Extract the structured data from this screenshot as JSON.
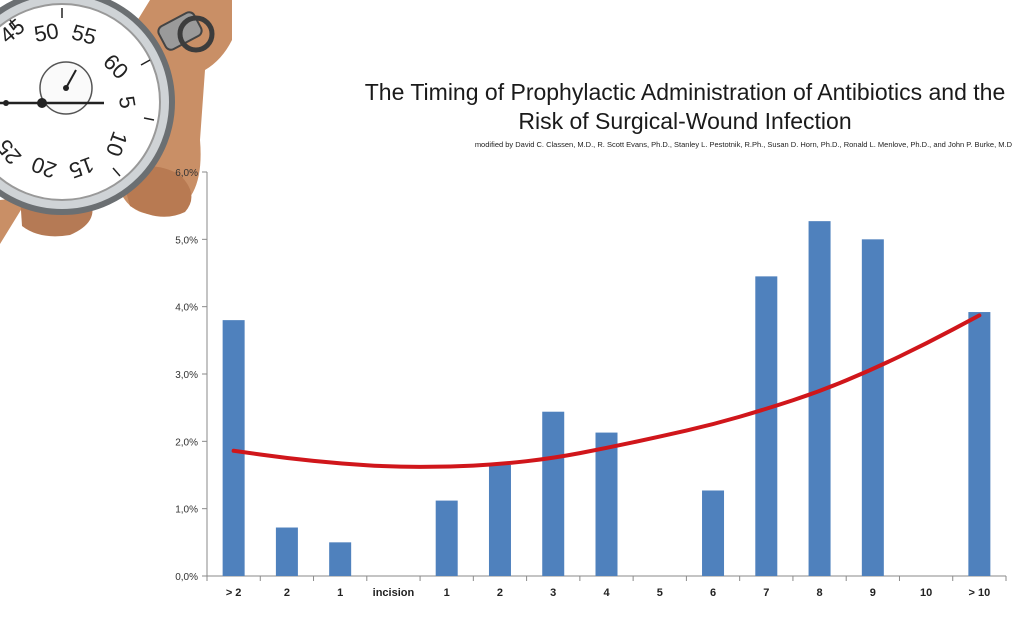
{
  "figure": {
    "title_line1": "The Timing of Prophylactic Administration of Antibiotics and the",
    "title_line2": "Risk of Surgical-Wound Infection",
    "subtitle": "modified by David C. Classen, M.D., R. Scott Evans, Ph.D., Stanley L. Pestotnik, R.Ph., Susan D. Horn, Ph.D., Ronald L. Menlove, Ph.D., and John P. Burke, M.D"
  },
  "stopwatch": {
    "dial_numbers": [
      "50",
      "55",
      "60",
      "5",
      "10",
      "15",
      "20",
      "25",
      "45"
    ]
  },
  "chart_data": {
    "type": "bar",
    "title": "The Timing of Prophylactic Administration of Antibiotics and the Risk of Surgical-Wound Infection",
    "categories": [
      "> 2",
      "2",
      "1",
      "incision",
      "1",
      "2",
      "3",
      "4",
      "5",
      "6",
      "7",
      "8",
      "9",
      "10",
      "> 10"
    ],
    "values": [
      3.8,
      0.72,
      0.5,
      0,
      1.12,
      1.65,
      2.44,
      2.13,
      0,
      1.27,
      4.45,
      5.27,
      5.0,
      0,
      3.92
    ],
    "trendline": {
      "type": "polynomial",
      "values": [
        1.86,
        1.75,
        1.67,
        1.62,
        1.62,
        1.66,
        1.75,
        1.9,
        2.07,
        2.25,
        2.48,
        2.74,
        3.07,
        3.45,
        3.87
      ]
    },
    "yticks": [
      "0,0%",
      "1,0%",
      "2,0%",
      "3,0%",
      "4,0%",
      "5,0%",
      "6,0%"
    ],
    "ylim": [
      0,
      6
    ],
    "xlabel": "",
    "ylabel": "",
    "grid": false,
    "legend": "none",
    "colors": {
      "bar": "#4f81bd",
      "trendline": "#d0161b",
      "axis": "#8a8a8a"
    }
  }
}
